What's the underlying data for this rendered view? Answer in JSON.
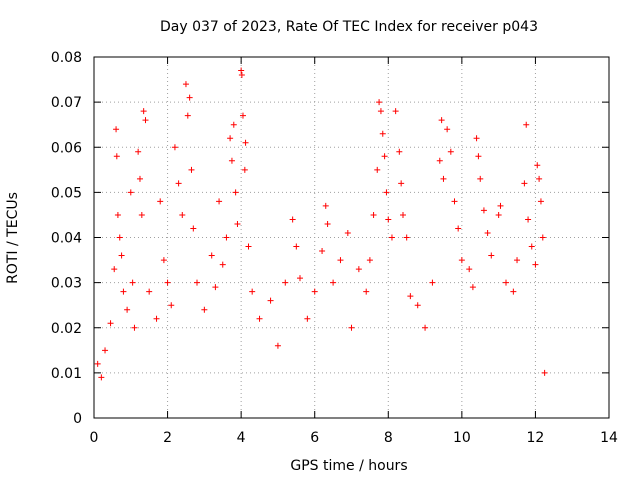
{
  "chart_data": {
    "type": "scatter",
    "title": "Day 037 of 2023, Rate Of TEC Index for receiver p043",
    "xlabel": "GPS time / hours",
    "ylabel": "ROTI / TECUs",
    "xlim": [
      0,
      14
    ],
    "ylim": [
      0,
      0.08
    ],
    "x_ticks": [
      0,
      2,
      4,
      6,
      8,
      10,
      12,
      14
    ],
    "x_tick_labels": [
      "0",
      "2",
      "4",
      "6",
      "8",
      "10",
      "12",
      "14"
    ],
    "y_ticks": [
      0,
      0.01,
      0.02,
      0.03,
      0.04,
      0.05,
      0.06,
      0.07,
      0.08
    ],
    "y_tick_labels": [
      "0",
      "0.01",
      "0.02",
      "0.03",
      "0.04",
      "0.05",
      "0.06",
      "0.07",
      "0.08"
    ],
    "grid": true,
    "marker": "+",
    "marker_color": "#ff0000",
    "series": [
      {
        "name": "ROTI",
        "points": [
          [
            0.1,
            0.012
          ],
          [
            0.2,
            0.009
          ],
          [
            0.3,
            0.015
          ],
          [
            0.45,
            0.021
          ],
          [
            0.55,
            0.033
          ],
          [
            0.6,
            0.064
          ],
          [
            0.62,
            0.058
          ],
          [
            0.65,
            0.045
          ],
          [
            0.7,
            0.04
          ],
          [
            0.75,
            0.036
          ],
          [
            0.8,
            0.028
          ],
          [
            0.9,
            0.024
          ],
          [
            1.0,
            0.05
          ],
          [
            1.05,
            0.03
          ],
          [
            1.1,
            0.02
          ],
          [
            1.2,
            0.059
          ],
          [
            1.25,
            0.053
          ],
          [
            1.3,
            0.045
          ],
          [
            1.35,
            0.068
          ],
          [
            1.4,
            0.066
          ],
          [
            1.5,
            0.028
          ],
          [
            1.7,
            0.022
          ],
          [
            1.8,
            0.048
          ],
          [
            1.9,
            0.035
          ],
          [
            2.0,
            0.03
          ],
          [
            2.1,
            0.025
          ],
          [
            2.2,
            0.06
          ],
          [
            2.3,
            0.052
          ],
          [
            2.4,
            0.045
          ],
          [
            2.5,
            0.074
          ],
          [
            2.55,
            0.067
          ],
          [
            2.6,
            0.071
          ],
          [
            2.65,
            0.055
          ],
          [
            2.7,
            0.042
          ],
          [
            2.8,
            0.03
          ],
          [
            3.0,
            0.024
          ],
          [
            3.2,
            0.036
          ],
          [
            3.3,
            0.029
          ],
          [
            3.4,
            0.048
          ],
          [
            3.5,
            0.034
          ],
          [
            3.6,
            0.04
          ],
          [
            3.7,
            0.062
          ],
          [
            3.75,
            0.057
          ],
          [
            3.8,
            0.065
          ],
          [
            3.85,
            0.05
          ],
          [
            3.9,
            0.043
          ],
          [
            4.0,
            0.077
          ],
          [
            4.02,
            0.076
          ],
          [
            4.05,
            0.067
          ],
          [
            4.1,
            0.055
          ],
          [
            4.12,
            0.061
          ],
          [
            4.2,
            0.038
          ],
          [
            4.3,
            0.028
          ],
          [
            4.5,
            0.022
          ],
          [
            4.8,
            0.026
          ],
          [
            5.0,
            0.016
          ],
          [
            5.2,
            0.03
          ],
          [
            5.4,
            0.044
          ],
          [
            5.5,
            0.038
          ],
          [
            5.6,
            0.031
          ],
          [
            5.8,
            0.022
          ],
          [
            6.0,
            0.028
          ],
          [
            6.2,
            0.037
          ],
          [
            6.3,
            0.047
          ],
          [
            6.35,
            0.043
          ],
          [
            6.5,
            0.03
          ],
          [
            6.7,
            0.035
          ],
          [
            6.9,
            0.041
          ],
          [
            7.0,
            0.02
          ],
          [
            7.2,
            0.033
          ],
          [
            7.4,
            0.028
          ],
          [
            7.5,
            0.035
          ],
          [
            7.6,
            0.045
          ],
          [
            7.7,
            0.055
          ],
          [
            7.75,
            0.07
          ],
          [
            7.8,
            0.068
          ],
          [
            7.85,
            0.063
          ],
          [
            7.9,
            0.058
          ],
          [
            7.95,
            0.05
          ],
          [
            8.0,
            0.044
          ],
          [
            8.1,
            0.04
          ],
          [
            8.2,
            0.068
          ],
          [
            8.3,
            0.059
          ],
          [
            8.35,
            0.052
          ],
          [
            8.4,
            0.045
          ],
          [
            8.5,
            0.04
          ],
          [
            8.6,
            0.027
          ],
          [
            8.8,
            0.025
          ],
          [
            9.0,
            0.02
          ],
          [
            9.2,
            0.03
          ],
          [
            9.4,
            0.057
          ],
          [
            9.45,
            0.066
          ],
          [
            9.5,
            0.053
          ],
          [
            9.6,
            0.064
          ],
          [
            9.7,
            0.059
          ],
          [
            9.8,
            0.048
          ],
          [
            9.9,
            0.042
          ],
          [
            10.0,
            0.035
          ],
          [
            10.2,
            0.033
          ],
          [
            10.3,
            0.029
          ],
          [
            10.4,
            0.062
          ],
          [
            10.45,
            0.058
          ],
          [
            10.5,
            0.053
          ],
          [
            10.6,
            0.046
          ],
          [
            10.7,
            0.041
          ],
          [
            10.8,
            0.036
          ],
          [
            11.0,
            0.045
          ],
          [
            11.05,
            0.047
          ],
          [
            11.2,
            0.03
          ],
          [
            11.4,
            0.028
          ],
          [
            11.5,
            0.035
          ],
          [
            11.7,
            0.052
          ],
          [
            11.75,
            0.065
          ],
          [
            11.8,
            0.044
          ],
          [
            11.9,
            0.038
          ],
          [
            12.0,
            0.034
          ],
          [
            12.05,
            0.056
          ],
          [
            12.1,
            0.053
          ],
          [
            12.15,
            0.048
          ],
          [
            12.2,
            0.04
          ],
          [
            12.25,
            0.01
          ]
        ]
      }
    ]
  }
}
